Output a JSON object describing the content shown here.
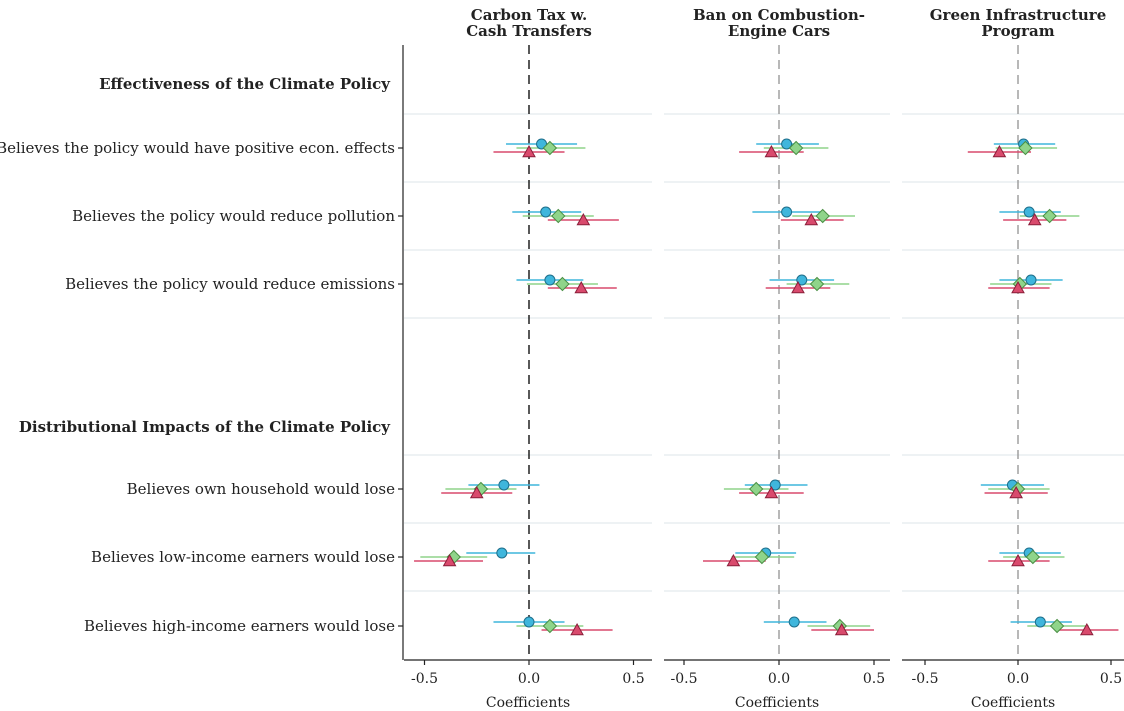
{
  "chart_data": {
    "type": "coefficient-plot",
    "panels": [
      {
        "title": [
          "Carbon Tax w.",
          "Cash Transfers"
        ]
      },
      {
        "title": [
          "Ban on Combustion-",
          "Engine Cars"
        ]
      },
      {
        "title": [
          "Green Infrastructure",
          "Program"
        ]
      }
    ],
    "sections": [
      "Effectiveness of the Climate Policy",
      "Distributional Impacts of the Climate Policy"
    ],
    "rows": [
      "Believes the policy would have positive econ. effects",
      "Believes the policy would reduce pollution",
      "Believes the policy would reduce emissions",
      "Believes own household would lose",
      "Believes low-income earners would lose",
      "Believes high-income earners would lose"
    ],
    "xlim": [
      -0.6,
      0.6
    ],
    "xticks": [
      "-0.5",
      "0.0",
      "0.5"
    ],
    "xlabel": "Coefficients",
    "series": [
      {
        "shape": "circle",
        "color": "#3fb6dc",
        "stroke": "#1f6f8b",
        "points": [
          [
            [
              0.06,
              -0.11,
              0.23
            ],
            [
              0.08,
              -0.08,
              0.25
            ],
            [
              0.1,
              -0.06,
              0.26
            ],
            [
              -0.12,
              -0.29,
              0.05
            ],
            [
              -0.13,
              -0.3,
              0.03
            ],
            [
              0.0,
              -0.17,
              0.17
            ]
          ],
          [
            [
              0.04,
              -0.12,
              0.21
            ],
            [
              0.04,
              -0.14,
              0.22
            ],
            [
              0.12,
              -0.05,
              0.29
            ],
            [
              -0.02,
              -0.18,
              0.15
            ],
            [
              -0.07,
              -0.23,
              0.09
            ],
            [
              0.08,
              -0.08,
              0.25
            ]
          ],
          [
            [
              0.03,
              -0.13,
              0.2
            ],
            [
              0.06,
              -0.1,
              0.23
            ],
            [
              0.07,
              -0.1,
              0.24
            ],
            [
              -0.03,
              -0.2,
              0.14
            ],
            [
              0.06,
              -0.1,
              0.23
            ],
            [
              0.12,
              -0.04,
              0.29
            ]
          ]
        ]
      },
      {
        "shape": "diamond",
        "color": "#8fd48a",
        "stroke": "#4a8f44",
        "points": [
          [
            [
              0.1,
              -0.06,
              0.27
            ],
            [
              0.14,
              -0.03,
              0.31
            ],
            [
              0.16,
              -0.01,
              0.33
            ],
            [
              -0.23,
              -0.4,
              -0.06
            ],
            [
              -0.36,
              -0.52,
              -0.2
            ],
            [
              0.1,
              -0.06,
              0.26
            ]
          ],
          [
            [
              0.09,
              -0.08,
              0.26
            ],
            [
              0.23,
              0.07,
              0.4
            ],
            [
              0.2,
              0.04,
              0.37
            ],
            [
              -0.12,
              -0.29,
              0.05
            ],
            [
              -0.09,
              -0.25,
              0.08
            ],
            [
              0.32,
              0.15,
              0.48
            ]
          ],
          [
            [
              0.04,
              -0.12,
              0.21
            ],
            [
              0.17,
              0.01,
              0.33
            ],
            [
              0.01,
              -0.15,
              0.18
            ],
            [
              0.0,
              -0.16,
              0.17
            ],
            [
              0.08,
              -0.08,
              0.25
            ],
            [
              0.21,
              0.05,
              0.38
            ]
          ]
        ]
      },
      {
        "shape": "triangle",
        "color": "#d94a6d",
        "stroke": "#8a1f3a",
        "points": [
          [
            [
              0.0,
              -0.17,
              0.17
            ],
            [
              0.26,
              0.09,
              0.43
            ],
            [
              0.25,
              0.09,
              0.42
            ],
            [
              -0.25,
              -0.42,
              -0.08
            ],
            [
              -0.38,
              -0.55,
              -0.22
            ],
            [
              0.23,
              0.06,
              0.4
            ]
          ],
          [
            [
              -0.04,
              -0.21,
              0.13
            ],
            [
              0.17,
              0.01,
              0.34
            ],
            [
              0.1,
              -0.07,
              0.27
            ],
            [
              -0.04,
              -0.21,
              0.13
            ],
            [
              -0.24,
              -0.4,
              -0.07
            ],
            [
              0.33,
              0.17,
              0.5
            ]
          ],
          [
            [
              -0.1,
              -0.27,
              0.07
            ],
            [
              0.09,
              -0.08,
              0.26
            ],
            [
              0.0,
              -0.16,
              0.17
            ],
            [
              -0.01,
              -0.18,
              0.16
            ],
            [
              0.0,
              -0.16,
              0.17
            ],
            [
              0.37,
              0.2,
              0.54
            ]
          ]
        ]
      }
    ]
  }
}
